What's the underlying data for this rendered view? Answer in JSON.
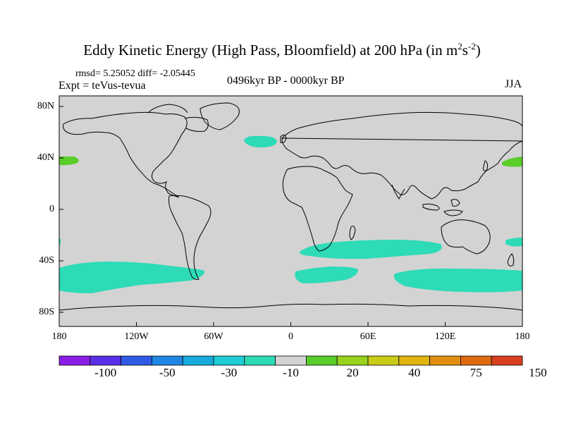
{
  "title": {
    "main": "Eddy Kinetic Energy (High Pass, Bloomfield) at 200 hPa (in m",
    "sup1": "2",
    "mid": "s",
    "sup2": "-2",
    "end": ")"
  },
  "stats": "rmsd= 5.25052 diff= -2.05445",
  "experiment": "Expt = teVus-tevua",
  "period": "0496kyr BP - 0000kyr BP",
  "season": "JJA",
  "lat_labels": [
    "80N",
    "40N",
    "0",
    "40S",
    "80S"
  ],
  "lon_labels": [
    "180",
    "120W",
    "60W",
    "0",
    "60E",
    "120E",
    "180"
  ],
  "colorbar": {
    "colors": [
      "#8a1de6",
      "#5a2ee6",
      "#2f5ae6",
      "#1f86e3",
      "#17aadd",
      "#1ecdd6",
      "#2ddbb7",
      "#d3d3d3",
      "#5acd2a",
      "#98d21c",
      "#c8cc16",
      "#e0b411",
      "#e28f10",
      "#de6a12",
      "#d8401d"
    ],
    "labels": [
      "-100",
      "-50",
      "-30",
      "-10",
      "20",
      "40",
      "75",
      "150"
    ]
  },
  "colors": {
    "ocean_land": "#d3d3d3",
    "anomaly_neg": "#2ddbb7",
    "anomaly_pos": "#5acd2a",
    "coast": "#000000"
  }
}
